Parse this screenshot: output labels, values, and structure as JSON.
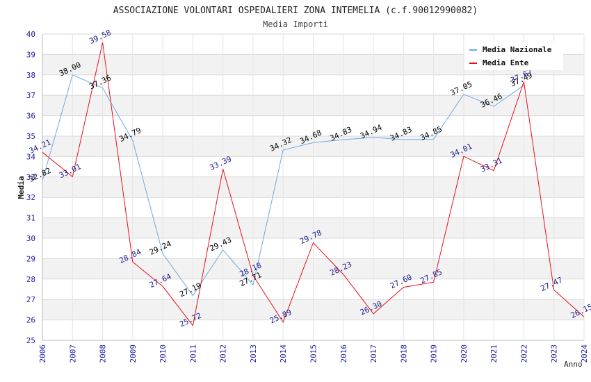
{
  "chart_data": {
    "type": "line",
    "title": "ASSOCIAZIONE VOLONTARI OSPEDALIERI ZONA INTEMELIA (c.f.90012990082)",
    "subtitle": "Media Importi",
    "xlabel": "Anno",
    "ylabel": "Media",
    "ylim": [
      25,
      40
    ],
    "yticks": [
      "25",
      "26",
      "27",
      "28",
      "29",
      "30",
      "31",
      "32",
      "33",
      "34",
      "35",
      "36",
      "37",
      "38",
      "39",
      "40"
    ],
    "categories": [
      "2006",
      "2007",
      "2008",
      "2009",
      "2010",
      "2011",
      "2012",
      "2013",
      "2014",
      "2015",
      "2016",
      "2017",
      "2018",
      "2019",
      "2020",
      "2021",
      "2022",
      "2023",
      "2024"
    ],
    "series": [
      {
        "name": "Media Nazionale",
        "color": "#6aaae4",
        "label_color": "#000000",
        "values": [
          32.82,
          38.0,
          37.36,
          34.79,
          29.24,
          27.19,
          29.43,
          27.71,
          34.32,
          34.68,
          34.83,
          34.94,
          34.83,
          34.85,
          37.05,
          36.46,
          37.49,
          null,
          null
        ],
        "labels": [
          "32.82",
          "38.00",
          "37.36",
          "34.79",
          "29.24",
          "27.19",
          "29.43",
          "27.71",
          "34.32",
          "34.68",
          "34.83",
          "34.94",
          "34.83",
          "34.85",
          "37.05",
          "36.46",
          "37.49",
          "",
          ""
        ]
      },
      {
        "name": "Media Ente",
        "color": "#e8101a",
        "label_color": "#1a1a8c",
        "values": [
          34.21,
          33.01,
          39.58,
          28.84,
          27.64,
          25.72,
          33.39,
          28.18,
          25.89,
          29.78,
          28.23,
          26.3,
          27.6,
          27.85,
          34.01,
          33.31,
          37.67,
          27.47,
          26.15
        ],
        "labels": [
          "34.21",
          "33.01",
          "39.58",
          "28.84",
          "27.64",
          "25.72",
          "33.39",
          "28.18",
          "25.89",
          "29.78",
          "28.23",
          "26.30",
          "27.60",
          "27.85",
          "34.01",
          "33.31",
          "37.67",
          "27.47",
          "26.15"
        ]
      }
    ],
    "grid": true,
    "legend": "top-right"
  }
}
